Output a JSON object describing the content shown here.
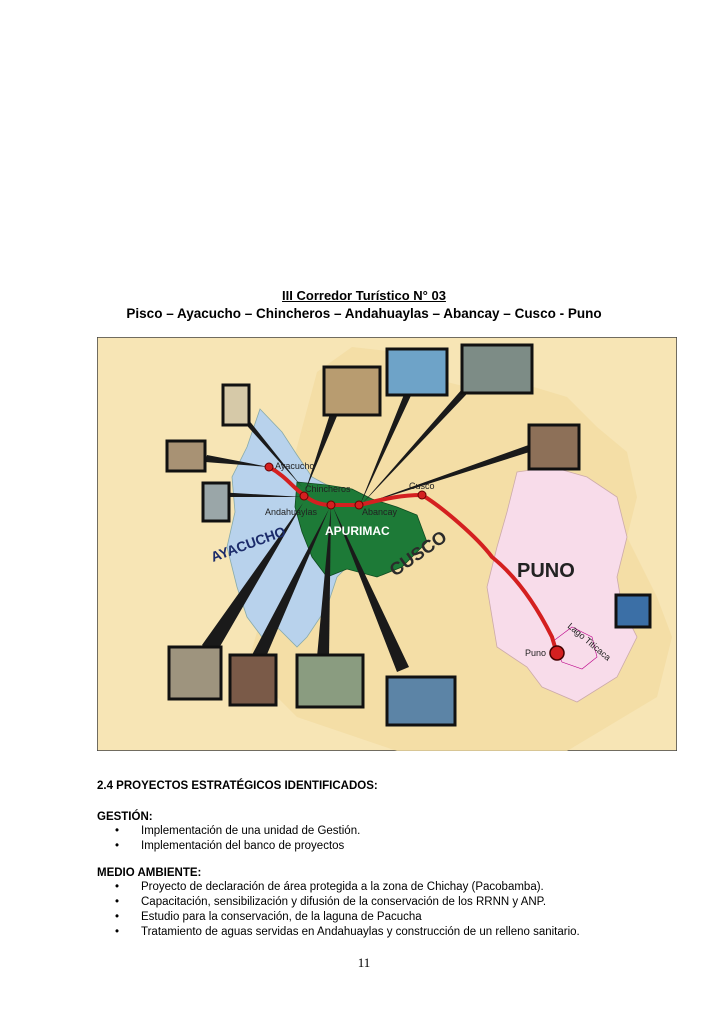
{
  "title": {
    "corridor": "III   Corredor Turístico N° 03",
    "route": "Pisco – Ayacucho – Chincheros – Andahuaylas – Abancay – Cusco - Puno"
  },
  "map": {
    "regions": {
      "ayacucho": "AYACUCHO",
      "apurimac": "APURIMAC",
      "cusco": "CUSCO",
      "puno": "PUNO"
    },
    "cities": {
      "ayacucho": "Ayacucho",
      "chincheros": "Chincheros",
      "andahuaylas": "Andahuaylas",
      "abancay": "Abancay",
      "cusco": "Cusco",
      "puno": "Puno"
    },
    "lake": "Lago Titicaca",
    "colors": {
      "background": "#f7e5b5",
      "ayacucho": "#b8d2ec",
      "apurimac": "#1d7a37",
      "puno": "#f8dcea",
      "route": "#d42020"
    }
  },
  "section": {
    "heading": "2.4   PROYECTOS ESTRATÉGICOS IDENTIFICADOS:",
    "groups": [
      {
        "title": "GESTIÓN:",
        "items": [
          "Implementación de una unidad de Gestión.",
          "Implementación del banco de proyectos"
        ]
      },
      {
        "title": "MEDIO AMBIENTE:",
        "items": [
          "Proyecto de declaración de área protegida a la zona de Chichay (Pacobamba).",
          "Capacitación, sensibilización y difusión de la conservación de los RRNN y ANP.",
          "Estudio para la conservación, de la laguna de Pacucha",
          "Tratamiento de aguas servidas en Andahuaylas y construcción de un relleno sanitario."
        ]
      }
    ]
  },
  "page_number": "11"
}
